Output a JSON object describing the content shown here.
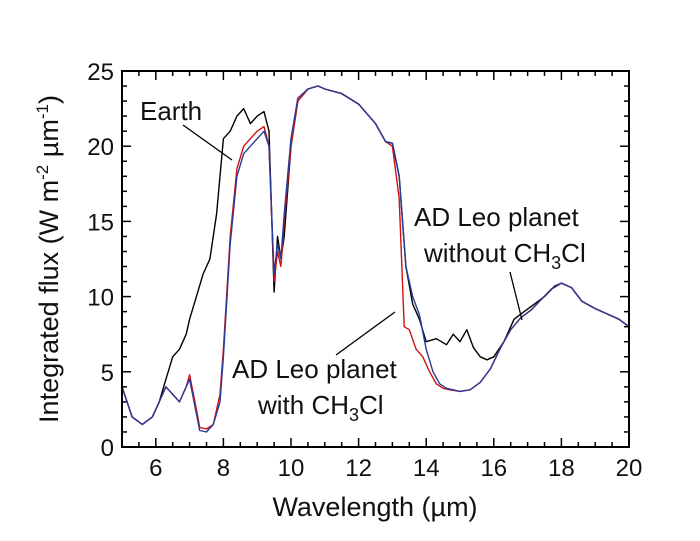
{
  "chart_data": {
    "type": "line",
    "title": "",
    "xlabel": "Wavelength (µm)",
    "ylabel_parts": [
      "Integrated flux (W m",
      "-2",
      " µm",
      "-1",
      ")"
    ],
    "xlim": [
      5,
      20
    ],
    "ylim": [
      0,
      25
    ],
    "xticks": [
      6,
      8,
      10,
      12,
      14,
      16,
      18,
      20
    ],
    "yticks": [
      0,
      5,
      10,
      15,
      20,
      25
    ],
    "grid": false,
    "annotations": {
      "earth": "Earth",
      "without_line1": "AD Leo planet",
      "without_line2_prefix": "without CH",
      "without_line2_sub": "3",
      "without_line2_suffix": "Cl",
      "with_line1": "AD Leo planet",
      "with_line2_prefix": "with CH",
      "with_line2_sub": "3",
      "with_line2_suffix": "Cl"
    },
    "series": [
      {
        "color": "#000000",
        "x": [
          5.0,
          5.3,
          5.6,
          5.9,
          6.1,
          6.3,
          6.5,
          6.7,
          6.9,
          7.0,
          7.2,
          7.4,
          7.6,
          7.8,
          8.0,
          8.2,
          8.4,
          8.6,
          8.8,
          9.0,
          9.2,
          9.35,
          9.5,
          9.6,
          9.7,
          9.8,
          10.0,
          10.2,
          10.5,
          10.8,
          11.0,
          11.5,
          12.0,
          12.5,
          12.8,
          13.0,
          13.2,
          13.4,
          13.6,
          13.8,
          14.0,
          14.3,
          14.6,
          14.8,
          15.0,
          15.2,
          15.4,
          15.6,
          15.8,
          16.0,
          16.3,
          16.6,
          16.9,
          17.2,
          17.5,
          17.8,
          18.0,
          18.3,
          18.6,
          19.0,
          19.4,
          19.7,
          20.0
        ],
        "y": [
          4.0,
          2.0,
          1.5,
          2.0,
          3.0,
          4.5,
          6.0,
          6.5,
          7.5,
          8.5,
          10.0,
          11.5,
          12.5,
          15.5,
          20.5,
          21.0,
          22.0,
          22.5,
          21.5,
          22.0,
          22.3,
          21.0,
          10.3,
          14.0,
          12.5,
          14.0,
          20.0,
          23.0,
          23.8,
          24.0,
          23.8,
          23.5,
          22.8,
          21.5,
          20.3,
          20.2,
          18.0,
          12.0,
          9.5,
          8.5,
          7.0,
          7.2,
          6.8,
          7.5,
          7.0,
          7.8,
          6.6,
          6.0,
          5.8,
          6.0,
          7.0,
          8.5,
          9.0,
          9.5,
          10.0,
          10.7,
          10.9,
          10.6,
          9.7,
          9.2,
          8.8,
          8.5,
          8.0
        ]
      },
      {
        "color": "#d01010",
        "x": [
          5.0,
          5.3,
          5.6,
          5.9,
          6.1,
          6.3,
          6.5,
          6.7,
          6.9,
          7.0,
          7.2,
          7.3,
          7.5,
          7.7,
          7.9,
          8.0,
          8.2,
          8.4,
          8.6,
          8.8,
          9.0,
          9.2,
          9.35,
          9.5,
          9.6,
          9.7,
          9.8,
          10.0,
          10.2,
          10.5,
          10.8,
          11.0,
          11.5,
          12.0,
          12.5,
          12.8,
          13.0,
          13.2,
          13.35,
          13.5,
          13.7,
          13.9,
          14.1,
          14.3,
          14.5,
          14.7,
          15.0,
          15.3,
          15.6,
          15.9,
          16.2,
          16.5,
          16.8,
          17.1,
          17.4,
          17.7,
          18.0,
          18.3,
          18.6,
          19.0,
          19.4,
          19.7,
          20.0
        ],
        "y": [
          4.0,
          2.0,
          1.5,
          2.0,
          3.0,
          4.0,
          3.5,
          3.0,
          4.0,
          4.8,
          2.5,
          1.3,
          1.2,
          1.5,
          3.5,
          6.5,
          14.0,
          18.5,
          20.0,
          20.5,
          21.0,
          21.3,
          20.0,
          11.0,
          13.0,
          12.0,
          15.0,
          20.0,
          23.0,
          23.8,
          24.0,
          23.8,
          23.5,
          22.8,
          21.5,
          20.3,
          20.0,
          16.5,
          8.0,
          7.8,
          6.5,
          6.0,
          5.0,
          4.2,
          3.9,
          3.8,
          3.7,
          3.8,
          4.3,
          5.2,
          6.6,
          7.8,
          8.6,
          9.1,
          9.8,
          10.5,
          10.9,
          10.6,
          9.7,
          9.2,
          8.8,
          8.5,
          8.0
        ]
      },
      {
        "color": "#2a3a9a",
        "x": [
          5.0,
          5.3,
          5.6,
          5.9,
          6.1,
          6.3,
          6.5,
          6.7,
          6.9,
          7.0,
          7.2,
          7.3,
          7.5,
          7.7,
          7.9,
          8.0,
          8.2,
          8.4,
          8.6,
          8.8,
          9.0,
          9.2,
          9.35,
          9.5,
          9.6,
          9.7,
          9.8,
          10.0,
          10.2,
          10.5,
          10.8,
          11.0,
          11.5,
          12.0,
          12.5,
          12.8,
          13.0,
          13.2,
          13.4,
          13.6,
          13.8,
          14.0,
          14.2,
          14.4,
          14.6,
          14.8,
          15.0,
          15.3,
          15.6,
          15.9,
          16.2,
          16.5,
          16.8,
          17.1,
          17.4,
          17.7,
          18.0,
          18.3,
          18.6,
          19.0,
          19.4,
          19.7,
          20.0
        ],
        "y": [
          4.0,
          2.0,
          1.5,
          2.0,
          3.0,
          4.0,
          3.5,
          3.0,
          4.0,
          4.5,
          2.2,
          1.1,
          1.0,
          1.5,
          3.0,
          6.0,
          13.5,
          18.0,
          19.5,
          20.0,
          20.5,
          21.0,
          20.0,
          11.5,
          13.5,
          12.5,
          15.5,
          20.5,
          23.2,
          23.8,
          24.0,
          23.8,
          23.5,
          22.8,
          21.5,
          20.3,
          20.2,
          18.0,
          12.0,
          10.0,
          8.8,
          6.5,
          5.0,
          4.2,
          3.9,
          3.8,
          3.7,
          3.8,
          4.3,
          5.2,
          6.6,
          7.8,
          8.6,
          9.1,
          9.8,
          10.5,
          10.9,
          10.6,
          9.7,
          9.2,
          8.8,
          8.5,
          8.0
        ]
      }
    ]
  }
}
